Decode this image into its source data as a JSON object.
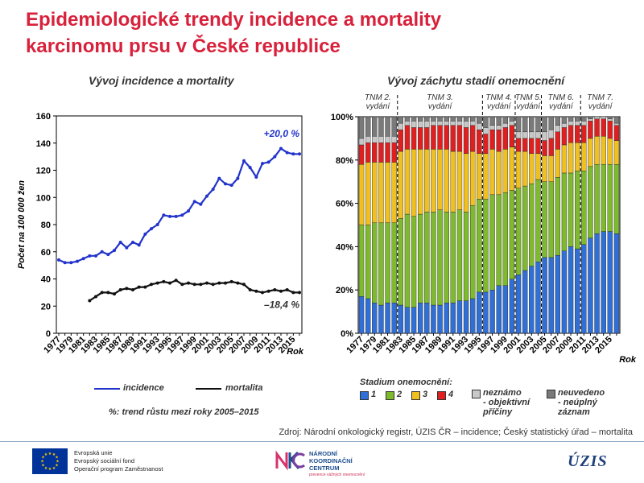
{
  "header": {
    "title_line1": "Epidemiologické trendy incidence a mortality",
    "title_line2": "karcinomu prsu v České republice"
  },
  "left_chart": {
    "subtitle": "Vývoj incidence a mortality"
  },
  "right_chart": {
    "subtitle": "Vývoj záchytu stadií onemocnění"
  },
  "legend_left": {
    "incidence_label": "incidence",
    "mortality_label": "mortalita",
    "note": "%: trend růstu mezi roky 2005–2015"
  },
  "legend_right": {
    "title": "Stadium  onemocnění:",
    "s1": "1",
    "s2": "2",
    "s3": "3",
    "s4": "4",
    "unknown": "neznámo\n- objektivní\npříčiny",
    "unstated": "neuvedeno\n- neúplný\nzáznam"
  },
  "footer": {
    "source": "Zdroj: Národní onkologický registr, ÚZIS ČR – incidence; Český statistický úřad – mortalita",
    "eu_line1": "Evropská unie",
    "eu_line2": "Evropský sociální fond",
    "eu_line3": "Operační program Zaměstnanost",
    "nkc_line1": "NÁRODNÍ",
    "nkc_line2": "KOORDINAČNÍ",
    "nkc_line3": "CENTRUM",
    "nkc_line4": "prevence vážných onemocnění",
    "uzis": "ÚZIS"
  },
  "colors": {
    "incidence": "#2233cc",
    "mortality": "#111111",
    "stage1": "#2f6fd6",
    "stage2": "#7fba2e",
    "stage3": "#f0c020",
    "stage4": "#e02020",
    "unknown": "#c8c8c8",
    "unstated": "#7a7a7a",
    "title": "#d8213b"
  },
  "chart_data": [
    {
      "type": "line",
      "title": "Vývoj incidence a mortality",
      "ylabel": "Počet na 100 000 žen",
      "xlabel": "Rok",
      "ylim": [
        0,
        160
      ],
      "yticks": [
        0,
        20,
        40,
        60,
        80,
        100,
        120,
        140,
        160
      ],
      "xticks": [
        "1977",
        "1979",
        "1981",
        "1983",
        "1985",
        "1987",
        "1989",
        "1991",
        "1993",
        "1995",
        "1997",
        "1999",
        "2001",
        "2003",
        "2005",
        "2007",
        "2009",
        "2011",
        "2013",
        "2015"
      ],
      "x": [
        1977,
        1978,
        1979,
        1980,
        1981,
        1982,
        1983,
        1984,
        1985,
        1986,
        1987,
        1988,
        1989,
        1990,
        1991,
        1992,
        1993,
        1994,
        1995,
        1996,
        1997,
        1998,
        1999,
        2000,
        2001,
        2002,
        2003,
        2004,
        2005,
        2006,
        2007,
        2008,
        2009,
        2010,
        2011,
        2012,
        2013,
        2014,
        2015,
        2016
      ],
      "series": [
        {
          "name": "incidence",
          "values": [
            54,
            52,
            52,
            53,
            55,
            57,
            57,
            60,
            58,
            61,
            67,
            63,
            67,
            65,
            73,
            77,
            80,
            87,
            86,
            86,
            87,
            90,
            97,
            95,
            101,
            106,
            114,
            110,
            109,
            114,
            127,
            122,
            115,
            125,
            126,
            130,
            136,
            133,
            132,
            132
          ]
        },
        {
          "name": "mortalita",
          "values": [
            null,
            null,
            null,
            null,
            null,
            24,
            27,
            30,
            30,
            29,
            32,
            33,
            32,
            34,
            34,
            36,
            37,
            38,
            37,
            39,
            36,
            37,
            36,
            36,
            37,
            36,
            37,
            37,
            38,
            37,
            36,
            32,
            31,
            30,
            31,
            32,
            31,
            32,
            30,
            30
          ]
        }
      ],
      "annotations": [
        "+20,0 %",
        "–18,4 %"
      ]
    },
    {
      "type": "bar",
      "stacked": true,
      "title": "Vývoj záchytu stadií onemocnění",
      "xlabel": "Rok",
      "ylim": [
        0,
        100
      ],
      "yticks": [
        "0%",
        "20%",
        "40%",
        "60%",
        "80%",
        "100%"
      ],
      "xticks": [
        "1977",
        "1979",
        "1981",
        "1983",
        "1985",
        "1987",
        "1989",
        "1991",
        "1993",
        "1995",
        "1997",
        "1999",
        "2001",
        "2003",
        "2005",
        "2007",
        "2009",
        "2011",
        "2013",
        "2015"
      ],
      "categories": [
        "1977",
        "1978",
        "1979",
        "1980",
        "1981",
        "1982",
        "1983",
        "1984",
        "1985",
        "1986",
        "1987",
        "1988",
        "1989",
        "1990",
        "1991",
        "1992",
        "1993",
        "1994",
        "1995",
        "1996",
        "1997",
        "1998",
        "1999",
        "2000",
        "2001",
        "2002",
        "2003",
        "2004",
        "2005",
        "2006",
        "2007",
        "2008",
        "2009",
        "2010",
        "2011",
        "2012",
        "2013",
        "2014",
        "2015",
        "2016"
      ],
      "period_labels": [
        "TNM 2.\nvydání",
        "TNM 3.\nvydání",
        "TNM 4.\nvydání",
        "TNM 5.\nvydání",
        "TNM 6.\nvydání",
        "TNM 7.\nvydání"
      ],
      "period_boundaries": [
        1982.5,
        1995.5,
        2000.5,
        2004.5,
        2010.5
      ],
      "series": [
        {
          "name": "1",
          "values": [
            17,
            16,
            14,
            13,
            14,
            14,
            13,
            12,
            12,
            14,
            14,
            13,
            13,
            14,
            14,
            15,
            15,
            16,
            19,
            19,
            20,
            22,
            22,
            25,
            27,
            29,
            31,
            33,
            35,
            35,
            36,
            38,
            40,
            39,
            41,
            44,
            46,
            47,
            47,
            46
          ]
        },
        {
          "name": "2",
          "values": [
            33,
            34,
            37,
            38,
            37,
            37,
            40,
            43,
            42,
            41,
            42,
            43,
            44,
            42,
            42,
            42,
            41,
            43,
            43,
            43,
            44,
            42,
            43,
            41,
            40,
            39,
            38,
            38,
            35,
            35,
            36,
            36,
            34,
            36,
            34,
            33,
            32,
            31,
            31,
            32
          ]
        },
        {
          "name": "3",
          "values": [
            28,
            29,
            28,
            28,
            28,
            28,
            31,
            30,
            31,
            30,
            29,
            29,
            28,
            29,
            28,
            27,
            27,
            25,
            21,
            21,
            21,
            20,
            20,
            20,
            17,
            16,
            14,
            12,
            12,
            12,
            13,
            13,
            14,
            13,
            13,
            13,
            13,
            13,
            12,
            11
          ]
        },
        {
          "name": "4",
          "values": [
            9,
            9,
            9,
            9,
            9,
            9,
            10,
            11,
            10,
            10,
            10,
            11,
            11,
            11,
            12,
            12,
            12,
            12,
            11,
            9,
            9,
            10,
            10,
            10,
            6,
            6,
            7,
            7,
            7,
            8,
            8,
            8,
            8,
            8,
            8,
            8,
            8,
            8,
            8,
            7
          ]
        },
        {
          "name": "neznámo - objektivní příčiny",
          "values": [
            3,
            3,
            3,
            3,
            3,
            3,
            3,
            2,
            3,
            3,
            3,
            2,
            2,
            2,
            2,
            2,
            3,
            2,
            3,
            3,
            2,
            2,
            2,
            2,
            3,
            3,
            3,
            3,
            4,
            4,
            3,
            2,
            2,
            2,
            2,
            1,
            1,
            1,
            1,
            1
          ]
        },
        {
          "name": "neuvedeno - neúplný záznam",
          "values": [
            10,
            9,
            9,
            9,
            9,
            9,
            3,
            2,
            2,
            2,
            2,
            2,
            2,
            2,
            2,
            2,
            2,
            2,
            3,
            5,
            4,
            4,
            3,
            2,
            7,
            7,
            7,
            7,
            7,
            6,
            4,
            3,
            2,
            2,
            2,
            1,
            0,
            0,
            1,
            3
          ]
        }
      ]
    }
  ]
}
